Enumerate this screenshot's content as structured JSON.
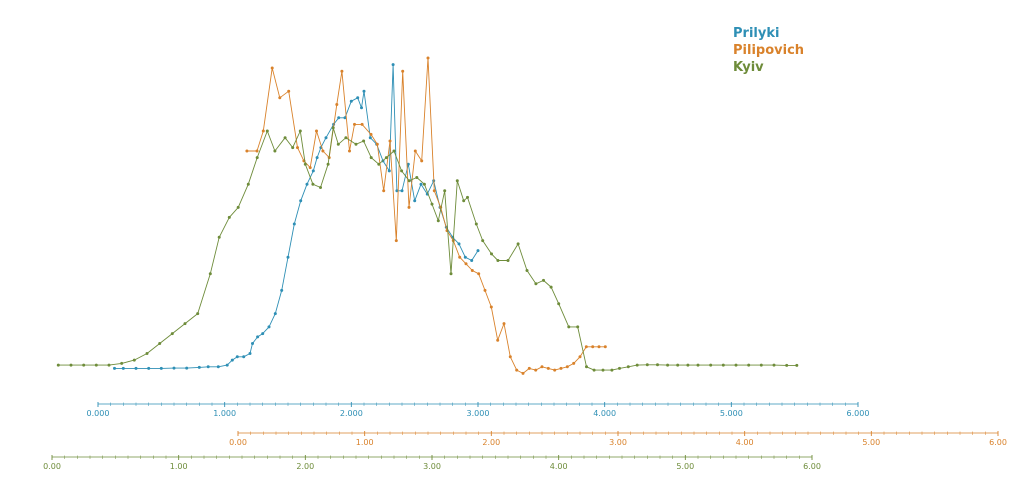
{
  "chart_data": {
    "type": "line",
    "legend": [
      {
        "name": "Prilyki",
        "color": "#2e8fb5"
      },
      {
        "name": "Pilipovich",
        "color": "#d9822b"
      },
      {
        "name": "Kyiv",
        "color": "#6e8c3a"
      }
    ],
    "legend_position": "top-right",
    "grid": false,
    "series": [
      {
        "name": "Prilyki",
        "color": "#2e8fb5",
        "axis": 0,
        "points": [
          [
            0.13,
            0.065
          ],
          [
            0.2,
            0.065
          ],
          [
            0.3,
            0.065
          ],
          [
            0.4,
            0.065
          ],
          [
            0.5,
            0.065
          ],
          [
            0.6,
            0.066
          ],
          [
            0.7,
            0.066
          ],
          [
            0.8,
            0.068
          ],
          [
            0.87,
            0.07
          ],
          [
            0.95,
            0.07
          ],
          [
            1.02,
            0.075
          ],
          [
            1.06,
            0.09
          ],
          [
            1.1,
            0.1
          ],
          [
            1.15,
            0.1
          ],
          [
            1.2,
            0.11
          ],
          [
            1.22,
            0.14
          ],
          [
            1.26,
            0.16
          ],
          [
            1.3,
            0.17
          ],
          [
            1.35,
            0.19
          ],
          [
            1.4,
            0.23
          ],
          [
            1.45,
            0.3
          ],
          [
            1.5,
            0.4
          ],
          [
            1.55,
            0.5
          ],
          [
            1.6,
            0.57
          ],
          [
            1.65,
            0.62
          ],
          [
            1.7,
            0.66
          ],
          [
            1.73,
            0.7
          ],
          [
            1.76,
            0.73
          ],
          [
            1.8,
            0.76
          ],
          [
            1.86,
            0.8
          ],
          [
            1.9,
            0.82
          ],
          [
            1.95,
            0.82
          ],
          [
            2.0,
            0.87
          ],
          [
            2.05,
            0.88
          ],
          [
            2.08,
            0.85
          ],
          [
            2.1,
            0.9
          ],
          [
            2.15,
            0.76
          ],
          [
            2.2,
            0.74
          ],
          [
            2.25,
            0.69
          ],
          [
            2.3,
            0.66
          ],
          [
            2.33,
            0.98
          ],
          [
            2.36,
            0.6
          ],
          [
            2.4,
            0.6
          ],
          [
            2.45,
            0.68
          ],
          [
            2.5,
            0.57
          ],
          [
            2.55,
            0.62
          ],
          [
            2.6,
            0.59
          ],
          [
            2.65,
            0.63
          ],
          [
            2.7,
            0.55
          ],
          [
            2.75,
            0.49
          ],
          [
            2.8,
            0.46
          ],
          [
            2.85,
            0.44
          ],
          [
            2.9,
            0.4
          ],
          [
            2.95,
            0.39
          ],
          [
            3.0,
            0.42
          ]
        ]
      },
      {
        "name": "Pilipovich",
        "color": "#d9822b",
        "axis": 1,
        "points": [
          [
            0.07,
            0.72
          ],
          [
            0.15,
            0.72
          ],
          [
            0.2,
            0.78
          ],
          [
            0.27,
            0.97
          ],
          [
            0.33,
            0.88
          ],
          [
            0.4,
            0.9
          ],
          [
            0.47,
            0.73
          ],
          [
            0.52,
            0.69
          ],
          [
            0.57,
            0.67
          ],
          [
            0.62,
            0.78
          ],
          [
            0.67,
            0.72
          ],
          [
            0.72,
            0.7
          ],
          [
            0.78,
            0.86
          ],
          [
            0.82,
            0.96
          ],
          [
            0.88,
            0.72
          ],
          [
            0.92,
            0.8
          ],
          [
            0.98,
            0.8
          ],
          [
            1.05,
            0.77
          ],
          [
            1.1,
            0.74
          ],
          [
            1.15,
            0.6
          ],
          [
            1.2,
            0.75
          ],
          [
            1.25,
            0.45
          ],
          [
            1.3,
            0.96
          ],
          [
            1.35,
            0.55
          ],
          [
            1.4,
            0.72
          ],
          [
            1.45,
            0.69
          ],
          [
            1.5,
            1.0
          ],
          [
            1.55,
            0.6
          ],
          [
            1.6,
            0.55
          ],
          [
            1.65,
            0.48
          ],
          [
            1.7,
            0.45
          ],
          [
            1.75,
            0.4
          ],
          [
            1.8,
            0.38
          ],
          [
            1.85,
            0.36
          ],
          [
            1.9,
            0.35
          ],
          [
            1.95,
            0.3
          ],
          [
            2.0,
            0.25
          ],
          [
            2.05,
            0.15
          ],
          [
            2.1,
            0.2
          ],
          [
            2.15,
            0.1
          ],
          [
            2.2,
            0.06
          ],
          [
            2.25,
            0.05
          ],
          [
            2.3,
            0.065
          ],
          [
            2.35,
            0.06
          ],
          [
            2.4,
            0.07
          ],
          [
            2.45,
            0.065
          ],
          [
            2.5,
            0.06
          ],
          [
            2.55,
            0.065
          ],
          [
            2.6,
            0.07
          ],
          [
            2.65,
            0.08
          ],
          [
            2.7,
            0.1
          ],
          [
            2.75,
            0.13
          ],
          [
            2.8,
            0.13
          ],
          [
            2.85,
            0.13
          ],
          [
            2.9,
            0.13
          ]
        ]
      },
      {
        "name": "Kyiv",
        "color": "#6e8c3a",
        "axis": 2,
        "points": [
          [
            0.05,
            0.075
          ],
          [
            0.15,
            0.075
          ],
          [
            0.25,
            0.075
          ],
          [
            0.35,
            0.075
          ],
          [
            0.45,
            0.075
          ],
          [
            0.55,
            0.08
          ],
          [
            0.65,
            0.09
          ],
          [
            0.75,
            0.11
          ],
          [
            0.85,
            0.14
          ],
          [
            0.95,
            0.17
          ],
          [
            1.05,
            0.2
          ],
          [
            1.15,
            0.23
          ],
          [
            1.25,
            0.35
          ],
          [
            1.32,
            0.46
          ],
          [
            1.4,
            0.52
          ],
          [
            1.47,
            0.55
          ],
          [
            1.55,
            0.62
          ],
          [
            1.62,
            0.7
          ],
          [
            1.7,
            0.78
          ],
          [
            1.76,
            0.72
          ],
          [
            1.84,
            0.76
          ],
          [
            1.9,
            0.73
          ],
          [
            1.96,
            0.78
          ],
          [
            2.0,
            0.68
          ],
          [
            2.06,
            0.62
          ],
          [
            2.12,
            0.61
          ],
          [
            2.18,
            0.68
          ],
          [
            2.22,
            0.79
          ],
          [
            2.26,
            0.74
          ],
          [
            2.32,
            0.76
          ],
          [
            2.4,
            0.74
          ],
          [
            2.46,
            0.75
          ],
          [
            2.52,
            0.7
          ],
          [
            2.58,
            0.68
          ],
          [
            2.64,
            0.7
          ],
          [
            2.7,
            0.72
          ],
          [
            2.76,
            0.66
          ],
          [
            2.82,
            0.63
          ],
          [
            2.88,
            0.64
          ],
          [
            2.94,
            0.62
          ],
          [
            3.0,
            0.56
          ],
          [
            3.05,
            0.51
          ],
          [
            3.1,
            0.6
          ],
          [
            3.15,
            0.35
          ],
          [
            3.2,
            0.63
          ],
          [
            3.25,
            0.57
          ],
          [
            3.28,
            0.58
          ],
          [
            3.35,
            0.5
          ],
          [
            3.4,
            0.45
          ],
          [
            3.47,
            0.41
          ],
          [
            3.52,
            0.39
          ],
          [
            3.6,
            0.39
          ],
          [
            3.68,
            0.44
          ],
          [
            3.75,
            0.36
          ],
          [
            3.82,
            0.32
          ],
          [
            3.88,
            0.33
          ],
          [
            3.94,
            0.31
          ],
          [
            4.0,
            0.26
          ],
          [
            4.08,
            0.19
          ],
          [
            4.15,
            0.19
          ],
          [
            4.22,
            0.07
          ],
          [
            4.28,
            0.06
          ],
          [
            4.35,
            0.06
          ],
          [
            4.42,
            0.06
          ],
          [
            4.48,
            0.065
          ],
          [
            4.55,
            0.07
          ],
          [
            4.62,
            0.075
          ],
          [
            4.7,
            0.076
          ],
          [
            4.78,
            0.076
          ],
          [
            4.86,
            0.075
          ],
          [
            4.94,
            0.075
          ],
          [
            5.02,
            0.075
          ],
          [
            5.1,
            0.075
          ],
          [
            5.2,
            0.075
          ],
          [
            5.3,
            0.075
          ],
          [
            5.4,
            0.075
          ],
          [
            5.5,
            0.075
          ],
          [
            5.6,
            0.075
          ],
          [
            5.7,
            0.075
          ],
          [
            5.8,
            0.074
          ],
          [
            5.88,
            0.074
          ]
        ]
      }
    ],
    "axes": [
      {
        "color": "#2e8fb5",
        "range": [
          0,
          6
        ],
        "ticks": [
          "0.000",
          "1.000",
          "2.000",
          "3.000",
          "4.000",
          "5.000",
          "6.000"
        ]
      },
      {
        "color": "#d9822b",
        "range": [
          0,
          6
        ],
        "ticks": [
          "0.00",
          "1.00",
          "2.00",
          "3.00",
          "4.00",
          "5.00",
          "6.00"
        ]
      },
      {
        "color": "#6e8c3a",
        "range": [
          0,
          6
        ],
        "ticks": [
          "0.00",
          "1.00",
          "2.00",
          "3.00",
          "4.00",
          "5.00",
          "6.00"
        ]
      }
    ]
  }
}
